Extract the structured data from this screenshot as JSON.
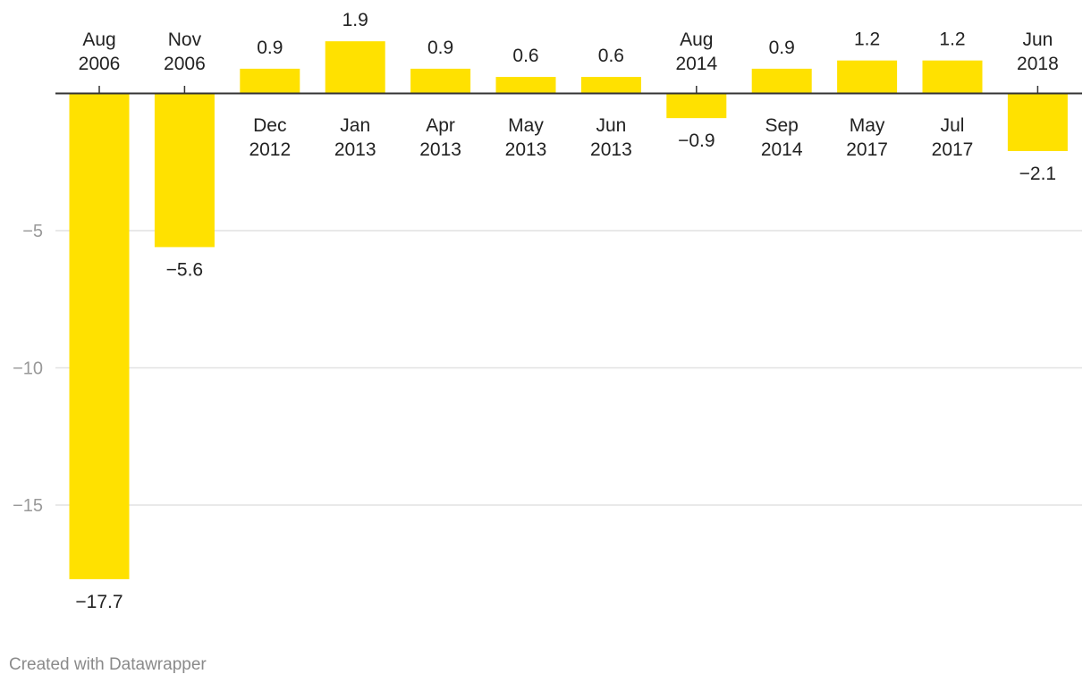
{
  "chart_data": {
    "type": "bar",
    "categories": [
      [
        "Aug",
        "2006"
      ],
      [
        "Nov",
        "2006"
      ],
      [
        "Dec",
        "2012"
      ],
      [
        "Jan",
        "2013"
      ],
      [
        "Apr",
        "2013"
      ],
      [
        "May",
        "2013"
      ],
      [
        "Jun",
        "2013"
      ],
      [
        "Aug",
        "2014"
      ],
      [
        "Sep",
        "2014"
      ],
      [
        "May",
        "2017"
      ],
      [
        "Jul",
        "2017"
      ],
      [
        "Jun",
        "2018"
      ]
    ],
    "values": [
      -17.7,
      -5.6,
      0.9,
      1.9,
      0.9,
      0.6,
      0.6,
      -0.9,
      0.9,
      1.2,
      1.2,
      -2.1
    ],
    "value_labels": [
      "−17.7",
      "−5.6",
      "0.9",
      "1.9",
      "0.9",
      "0.6",
      "0.6",
      "−0.9",
      "0.9",
      "1.2",
      "1.2",
      "−2.1"
    ],
    "yticks": [
      -5,
      -10,
      -15
    ],
    "ytick_labels": [
      "−5",
      "−10",
      "−15"
    ],
    "ylim": [
      -17.7,
      1.9
    ],
    "grid": true,
    "bar_color": "#ffe100",
    "title": "",
    "xlabel": "",
    "ylabel": ""
  },
  "footer": {
    "credit": "Created with Datawrapper"
  }
}
